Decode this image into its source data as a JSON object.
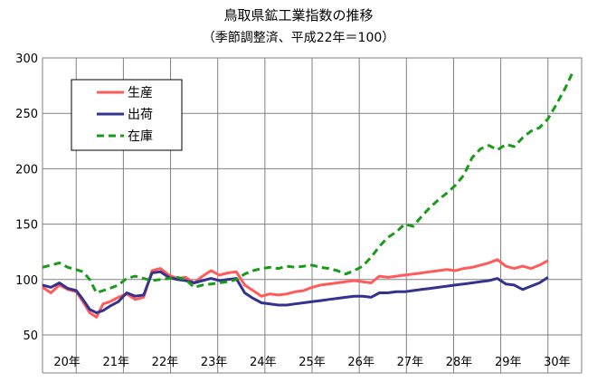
{
  "chart_data": {
    "type": "line",
    "title": "鳥取県鉱工業指数の推移",
    "subtitle": "（季節調整済、平成22年＝100）",
    "xlabel": "",
    "ylabel": "",
    "ylim": [
      50,
      300
    ],
    "yticks": [
      "50",
      "100",
      "150",
      "200",
      "250",
      "300"
    ],
    "x_categories": [
      "20年",
      "21年",
      "22年",
      "23年",
      "24年",
      "25年",
      "26年",
      "27年",
      "28年",
      "29年",
      "30年"
    ],
    "grid": true,
    "legend_position": "top-left",
    "series": [
      {
        "name": "生産",
        "color": "#ff5b5b",
        "dash": "solid",
        "values": [
          {
            "x": 0.0,
            "y": 93
          },
          {
            "x": 0.25,
            "y": 88
          },
          {
            "x": 0.5,
            "y": 95
          },
          {
            "x": 0.75,
            "y": 91
          },
          {
            "x": 1.0,
            "y": 89
          },
          {
            "x": 1.2,
            "y": 80
          },
          {
            "x": 1.4,
            "y": 70
          },
          {
            "x": 1.6,
            "y": 66
          },
          {
            "x": 1.8,
            "y": 78
          },
          {
            "x": 2.0,
            "y": 80
          },
          {
            "x": 2.25,
            "y": 84
          },
          {
            "x": 2.5,
            "y": 87
          },
          {
            "x": 2.75,
            "y": 82
          },
          {
            "x": 3.0,
            "y": 84
          },
          {
            "x": 3.25,
            "y": 108
          },
          {
            "x": 3.5,
            "y": 110
          },
          {
            "x": 3.75,
            "y": 104
          },
          {
            "x": 4.0,
            "y": 101
          },
          {
            "x": 4.25,
            "y": 102
          },
          {
            "x": 4.5,
            "y": 97
          },
          {
            "x": 4.75,
            "y": 103
          },
          {
            "x": 5.0,
            "y": 108
          },
          {
            "x": 5.25,
            "y": 104
          },
          {
            "x": 5.5,
            "y": 106
          },
          {
            "x": 5.75,
            "y": 107
          },
          {
            "x": 6.0,
            "y": 95
          },
          {
            "x": 6.25,
            "y": 90
          },
          {
            "x": 6.5,
            "y": 85
          },
          {
            "x": 6.75,
            "y": 87
          },
          {
            "x": 7.0,
            "y": 86
          },
          {
            "x": 7.25,
            "y": 87
          },
          {
            "x": 7.5,
            "y": 89
          },
          {
            "x": 7.75,
            "y": 90
          },
          {
            "x": 8.0,
            "y": 93
          },
          {
            "x": 8.25,
            "y": 95
          },
          {
            "x": 8.5,
            "y": 96
          },
          {
            "x": 8.75,
            "y": 97
          },
          {
            "x": 9.0,
            "y": 98
          },
          {
            "x": 9.25,
            "y": 99
          },
          {
            "x": 9.5,
            "y": 98
          },
          {
            "x": 9.75,
            "y": 97
          },
          {
            "x": 10.0,
            "y": 103
          },
          {
            "x": 10.25,
            "y": 102
          },
          {
            "x": 10.5,
            "y": 103
          },
          {
            "x": 10.75,
            "y": 104
          },
          {
            "x": 11.0,
            "y": 105
          },
          {
            "x": 11.25,
            "y": 106
          },
          {
            "x": 11.5,
            "y": 107
          },
          {
            "x": 11.75,
            "y": 108
          },
          {
            "x": 12.0,
            "y": 109
          },
          {
            "x": 12.25,
            "y": 108
          },
          {
            "x": 12.5,
            "y": 110
          },
          {
            "x": 12.75,
            "y": 111
          },
          {
            "x": 13.0,
            "y": 113
          },
          {
            "x": 13.25,
            "y": 115
          },
          {
            "x": 13.5,
            "y": 118
          },
          {
            "x": 13.75,
            "y": 112
          },
          {
            "x": 14.0,
            "y": 110
          },
          {
            "x": 14.25,
            "y": 112
          },
          {
            "x": 14.5,
            "y": 110
          },
          {
            "x": 14.75,
            "y": 113
          },
          {
            "x": 15.0,
            "y": 117
          }
        ]
      },
      {
        "name": "出荷",
        "color": "#33338f",
        "dash": "solid",
        "values": [
          {
            "x": 0.0,
            "y": 95
          },
          {
            "x": 0.25,
            "y": 93
          },
          {
            "x": 0.5,
            "y": 97
          },
          {
            "x": 0.75,
            "y": 92
          },
          {
            "x": 1.0,
            "y": 90
          },
          {
            "x": 1.2,
            "y": 82
          },
          {
            "x": 1.4,
            "y": 73
          },
          {
            "x": 1.6,
            "y": 70
          },
          {
            "x": 1.8,
            "y": 72
          },
          {
            "x": 2.0,
            "y": 76
          },
          {
            "x": 2.25,
            "y": 80
          },
          {
            "x": 2.5,
            "y": 88
          },
          {
            "x": 2.75,
            "y": 85
          },
          {
            "x": 3.0,
            "y": 86
          },
          {
            "x": 3.25,
            "y": 106
          },
          {
            "x": 3.5,
            "y": 107
          },
          {
            "x": 3.75,
            "y": 102
          },
          {
            "x": 4.0,
            "y": 100
          },
          {
            "x": 4.25,
            "y": 99
          },
          {
            "x": 4.5,
            "y": 97
          },
          {
            "x": 4.75,
            "y": 99
          },
          {
            "x": 5.0,
            "y": 101
          },
          {
            "x": 5.25,
            "y": 99
          },
          {
            "x": 5.5,
            "y": 100
          },
          {
            "x": 5.75,
            "y": 101
          },
          {
            "x": 6.0,
            "y": 88
          },
          {
            "x": 6.25,
            "y": 83
          },
          {
            "x": 6.5,
            "y": 79
          },
          {
            "x": 6.75,
            "y": 78
          },
          {
            "x": 7.0,
            "y": 77
          },
          {
            "x": 7.25,
            "y": 77
          },
          {
            "x": 7.5,
            "y": 78
          },
          {
            "x": 7.75,
            "y": 79
          },
          {
            "x": 8.0,
            "y": 80
          },
          {
            "x": 8.25,
            "y": 81
          },
          {
            "x": 8.5,
            "y": 82
          },
          {
            "x": 8.75,
            "y": 83
          },
          {
            "x": 9.0,
            "y": 84
          },
          {
            "x": 9.25,
            "y": 85
          },
          {
            "x": 9.5,
            "y": 85
          },
          {
            "x": 9.75,
            "y": 84
          },
          {
            "x": 10.0,
            "y": 88
          },
          {
            "x": 10.25,
            "y": 88
          },
          {
            "x": 10.5,
            "y": 89
          },
          {
            "x": 10.75,
            "y": 89
          },
          {
            "x": 11.0,
            "y": 90
          },
          {
            "x": 11.25,
            "y": 91
          },
          {
            "x": 11.5,
            "y": 92
          },
          {
            "x": 11.75,
            "y": 93
          },
          {
            "x": 12.0,
            "y": 94
          },
          {
            "x": 12.25,
            "y": 95
          },
          {
            "x": 12.5,
            "y": 96
          },
          {
            "x": 12.75,
            "y": 97
          },
          {
            "x": 13.0,
            "y": 98
          },
          {
            "x": 13.25,
            "y": 99
          },
          {
            "x": 13.5,
            "y": 101
          },
          {
            "x": 13.75,
            "y": 96
          },
          {
            "x": 14.0,
            "y": 95
          },
          {
            "x": 14.25,
            "y": 91
          },
          {
            "x": 14.5,
            "y": 94
          },
          {
            "x": 14.75,
            "y": 97
          },
          {
            "x": 15.0,
            "y": 102
          }
        ]
      },
      {
        "name": "在庫",
        "color": "#1a9a1a",
        "dash": "dashed",
        "values": [
          {
            "x": 0.0,
            "y": 111
          },
          {
            "x": 0.25,
            "y": 113
          },
          {
            "x": 0.5,
            "y": 115
          },
          {
            "x": 0.75,
            "y": 111
          },
          {
            "x": 1.0,
            "y": 109
          },
          {
            "x": 1.2,
            "y": 107
          },
          {
            "x": 1.4,
            "y": 100
          },
          {
            "x": 1.6,
            "y": 88
          },
          {
            "x": 1.8,
            "y": 90
          },
          {
            "x": 2.0,
            "y": 92
          },
          {
            "x": 2.25,
            "y": 95
          },
          {
            "x": 2.5,
            "y": 101
          },
          {
            "x": 2.75,
            "y": 103
          },
          {
            "x": 3.0,
            "y": 101
          },
          {
            "x": 3.25,
            "y": 99
          },
          {
            "x": 3.5,
            "y": 100
          },
          {
            "x": 3.75,
            "y": 101
          },
          {
            "x": 4.0,
            "y": 102
          },
          {
            "x": 4.25,
            "y": 100
          },
          {
            "x": 4.5,
            "y": 93
          },
          {
            "x": 4.75,
            "y": 95
          },
          {
            "x": 5.0,
            "y": 96
          },
          {
            "x": 5.25,
            "y": 97
          },
          {
            "x": 5.5,
            "y": 98
          },
          {
            "x": 5.75,
            "y": 100
          },
          {
            "x": 6.0,
            "y": 105
          },
          {
            "x": 6.25,
            "y": 108
          },
          {
            "x": 6.5,
            "y": 110
          },
          {
            "x": 6.75,
            "y": 111
          },
          {
            "x": 7.0,
            "y": 110
          },
          {
            "x": 7.25,
            "y": 112
          },
          {
            "x": 7.5,
            "y": 111
          },
          {
            "x": 7.75,
            "y": 112
          },
          {
            "x": 8.0,
            "y": 113
          },
          {
            "x": 8.25,
            "y": 111
          },
          {
            "x": 8.5,
            "y": 110
          },
          {
            "x": 8.75,
            "y": 108
          },
          {
            "x": 9.0,
            "y": 105
          },
          {
            "x": 9.25,
            "y": 108
          },
          {
            "x": 9.5,
            "y": 112
          },
          {
            "x": 9.75,
            "y": 120
          },
          {
            "x": 10.0,
            "y": 130
          },
          {
            "x": 10.25,
            "y": 138
          },
          {
            "x": 10.5,
            "y": 143
          },
          {
            "x": 10.75,
            "y": 150
          },
          {
            "x": 11.0,
            "y": 148
          },
          {
            "x": 11.25,
            "y": 157
          },
          {
            "x": 11.5,
            "y": 165
          },
          {
            "x": 11.75,
            "y": 172
          },
          {
            "x": 12.0,
            "y": 178
          },
          {
            "x": 12.25,
            "y": 185
          },
          {
            "x": 12.5,
            "y": 194
          },
          {
            "x": 12.75,
            "y": 210
          },
          {
            "x": 13.0,
            "y": 218
          },
          {
            "x": 13.25,
            "y": 221
          },
          {
            "x": 13.5,
            "y": 217
          },
          {
            "x": 13.75,
            "y": 222
          },
          {
            "x": 14.0,
            "y": 220
          },
          {
            "x": 14.25,
            "y": 228
          },
          {
            "x": 14.5,
            "y": 234
          },
          {
            "x": 14.75,
            "y": 237
          },
          {
            "x": 15.0,
            "y": 245
          },
          {
            "x": 15.25,
            "y": 258
          },
          {
            "x": 15.5,
            "y": 272
          },
          {
            "x": 15.75,
            "y": 288
          }
        ]
      }
    ]
  }
}
